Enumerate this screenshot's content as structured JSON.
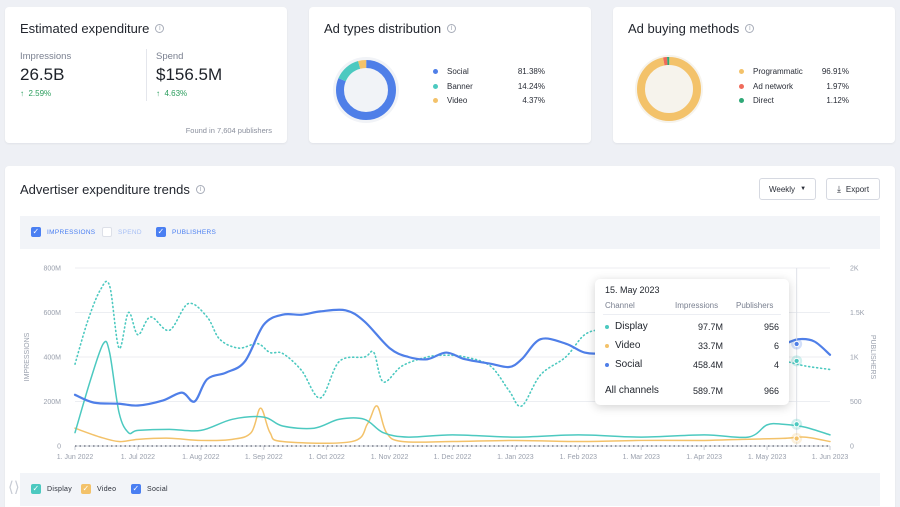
{
  "estimated": {
    "title": "Estimated expenditure",
    "impressions_label": "Impressions",
    "impressions_value": "26.5B",
    "impressions_delta": "2.59%",
    "spend_label": "Spend",
    "spend_value": "$156.5M",
    "spend_delta": "4.63%",
    "footnote": "Found in 7,604 publishers"
  },
  "ad_types": {
    "title": "Ad types distribution",
    "items": [
      {
        "label": "Social",
        "value": "81.38%",
        "pct": 81.38,
        "color": "#4f7fe8"
      },
      {
        "label": "Banner",
        "value": "14.24%",
        "pct": 14.24,
        "color": "#4cc9c0"
      },
      {
        "label": "Video",
        "value": "4.37%",
        "pct": 4.37,
        "color": "#f3c26a"
      }
    ]
  },
  "buying": {
    "title": "Ad buying methods",
    "items": [
      {
        "label": "Programmatic",
        "value": "96.91%",
        "pct": 96.91,
        "color": "#f3c26a"
      },
      {
        "label": "Ad network",
        "value": "1.97%",
        "pct": 1.97,
        "color": "#ef6b5b"
      },
      {
        "label": "Direct",
        "value": "1.12%",
        "pct": 1.12,
        "color": "#2fa877"
      }
    ]
  },
  "trends": {
    "title": "Advertiser expenditure trends",
    "period_button": "Weekly",
    "export_button": "Export",
    "toggles": [
      {
        "label": "IMPRESSIONS",
        "checked": true
      },
      {
        "label": "SPEND",
        "checked": false
      },
      {
        "label": "PUBLISHERS",
        "checked": true
      }
    ],
    "bottom_legend": [
      {
        "label": "Display",
        "checked": true
      },
      {
        "label": "Video",
        "checked": true
      },
      {
        "label": "Social",
        "checked": true
      }
    ],
    "left_axis_title": "IMPRESSIONS",
    "right_axis_title": "PUBLISHERS"
  },
  "tooltip": {
    "date": "15. May 2023",
    "headers": [
      "Channel",
      "Impressions",
      "Publishers"
    ],
    "rows": [
      {
        "channel": "Display",
        "impressions": "97.7M",
        "publishers": "956",
        "color": "#4cc9c0"
      },
      {
        "channel": "Video",
        "impressions": "33.7M",
        "publishers": "6",
        "color": "#f3c26a"
      },
      {
        "channel": "Social",
        "impressions": "458.4M",
        "publishers": "4",
        "color": "#4f7fe8"
      }
    ],
    "total": {
      "channel": "All channels",
      "impressions": "589.7M",
      "publishers": "966"
    }
  },
  "chart_data": {
    "type": "line",
    "title": "Advertiser expenditure trends",
    "x": [
      "1. Jun 2022",
      "1. Jul 2022",
      "1. Aug 2022",
      "1. Sep 2022",
      "1. Oct 2022",
      "1. Nov 2022",
      "1. Dec 2022",
      "1. Jan 2023",
      "1. Feb 2023",
      "1. Mar 2023",
      "1. Apr 2023",
      "1. May 2023",
      "1. Jun 2023"
    ],
    "y_left_ticks": [
      "0",
      "200M",
      "400M",
      "600M",
      "800M"
    ],
    "y_right_ticks": [
      "0",
      "500",
      "1K",
      "1.5K",
      "2K"
    ],
    "ylim_left": [
      0,
      800
    ],
    "ylim_right": [
      0,
      2000
    ],
    "ylabel_left": "IMPRESSIONS",
    "ylabel_right": "PUBLISHERS",
    "series": [
      {
        "name": "Social",
        "axis": "left",
        "color": "#4f7fe8",
        "style": "solid",
        "points": [
          [
            0,
            230
          ],
          [
            0.3,
            195
          ],
          [
            0.7,
            190
          ],
          [
            1,
            182
          ],
          [
            1.4,
            205
          ],
          [
            1.7,
            240
          ],
          [
            1.9,
            200
          ],
          [
            2.1,
            300
          ],
          [
            2.4,
            330
          ],
          [
            2.7,
            380
          ],
          [
            3,
            545
          ],
          [
            3.3,
            590
          ],
          [
            3.6,
            590
          ],
          [
            3.9,
            605
          ],
          [
            4.3,
            610
          ],
          [
            4.6,
            560
          ],
          [
            5,
            440
          ],
          [
            5.3,
            400
          ],
          [
            5.6,
            390
          ],
          [
            5.9,
            420
          ],
          [
            6.2,
            390
          ],
          [
            6.6,
            370
          ],
          [
            6.9,
            355
          ],
          [
            7.1,
            390
          ],
          [
            7.4,
            480
          ],
          [
            7.8,
            460
          ],
          [
            8.1,
            420
          ],
          [
            8.4,
            420
          ],
          [
            8.7,
            460
          ],
          [
            9.1,
            500
          ],
          [
            9.4,
            490
          ],
          [
            9.8,
            500
          ],
          [
            10.1,
            480
          ],
          [
            10.4,
            470
          ],
          [
            10.7,
            490
          ],
          [
            11,
            460
          ],
          [
            11.25,
            458
          ],
          [
            11.5,
            480
          ],
          [
            11.75,
            470
          ],
          [
            12,
            410
          ]
        ]
      },
      {
        "name": "Display",
        "axis": "left",
        "color": "#4cc9c0",
        "style": "solid",
        "points": [
          [
            0,
            60
          ],
          [
            0.25,
            300
          ],
          [
            0.45,
            460
          ],
          [
            0.55,
            420
          ],
          [
            0.7,
            150
          ],
          [
            0.85,
            60
          ],
          [
            1,
            70
          ],
          [
            1.5,
            75
          ],
          [
            2,
            70
          ],
          [
            2.5,
            120
          ],
          [
            3,
            130
          ],
          [
            3.3,
            90
          ],
          [
            3.8,
            80
          ],
          [
            4.2,
            120
          ],
          [
            4.6,
            120
          ],
          [
            4.9,
            60
          ],
          [
            5.3,
            40
          ],
          [
            6,
            50
          ],
          [
            7,
            40
          ],
          [
            8,
            50
          ],
          [
            9,
            40
          ],
          [
            10,
            50
          ],
          [
            10.7,
            40
          ],
          [
            11,
            95
          ],
          [
            11.25,
            98
          ],
          [
            11.6,
            85
          ],
          [
            12,
            50
          ]
        ]
      },
      {
        "name": "Video",
        "axis": "left",
        "color": "#f3c26a",
        "style": "solid",
        "points": [
          [
            0,
            80
          ],
          [
            0.4,
            40
          ],
          [
            0.7,
            20
          ],
          [
            1,
            30
          ],
          [
            1.5,
            35
          ],
          [
            2,
            25
          ],
          [
            2.5,
            30
          ],
          [
            2.8,
            60
          ],
          [
            2.95,
            170
          ],
          [
            3.1,
            60
          ],
          [
            3.3,
            20
          ],
          [
            4.4,
            20
          ],
          [
            4.65,
            100
          ],
          [
            4.8,
            180
          ],
          [
            4.95,
            60
          ],
          [
            5.2,
            20
          ],
          [
            6,
            20
          ],
          [
            7,
            25
          ],
          [
            8,
            20
          ],
          [
            9,
            25
          ],
          [
            10,
            25
          ],
          [
            10.6,
            30
          ],
          [
            11.25,
            34
          ],
          [
            11.6,
            40
          ],
          [
            12,
            20
          ]
        ]
      },
      {
        "name": "Publishers",
        "axis": "right",
        "color": "#4cc9c0",
        "style": "dotted",
        "points": [
          [
            0,
            920
          ],
          [
            0.2,
            1400
          ],
          [
            0.4,
            1750
          ],
          [
            0.55,
            1800
          ],
          [
            0.7,
            1100
          ],
          [
            0.85,
            1500
          ],
          [
            1,
            1250
          ],
          [
            1.2,
            1450
          ],
          [
            1.5,
            1300
          ],
          [
            1.8,
            1600
          ],
          [
            2.1,
            1450
          ],
          [
            2.3,
            1200
          ],
          [
            2.6,
            1100
          ],
          [
            2.9,
            1150
          ],
          [
            3.1,
            1050
          ],
          [
            3.3,
            1040
          ],
          [
            3.6,
            850
          ],
          [
            3.9,
            540
          ],
          [
            4.2,
            950
          ],
          [
            4.6,
            1000
          ],
          [
            4.75,
            1050
          ],
          [
            4.9,
            720
          ],
          [
            5.2,
            900
          ],
          [
            5.6,
            1000
          ],
          [
            5.9,
            1020
          ],
          [
            6.2,
            1000
          ],
          [
            6.6,
            900
          ],
          [
            6.9,
            620
          ],
          [
            7.1,
            450
          ],
          [
            7.4,
            800
          ],
          [
            7.8,
            1000
          ],
          [
            8.1,
            1250
          ],
          [
            8.4,
            1300
          ],
          [
            8.7,
            1200
          ],
          [
            9.1,
            1000
          ],
          [
            9.4,
            1050
          ],
          [
            9.8,
            950
          ],
          [
            10.1,
            950
          ],
          [
            10.4,
            980
          ],
          [
            10.8,
            900
          ],
          [
            11,
            950
          ],
          [
            11.25,
            956
          ],
          [
            11.6,
            900
          ],
          [
            12,
            860
          ]
        ]
      }
    ]
  }
}
